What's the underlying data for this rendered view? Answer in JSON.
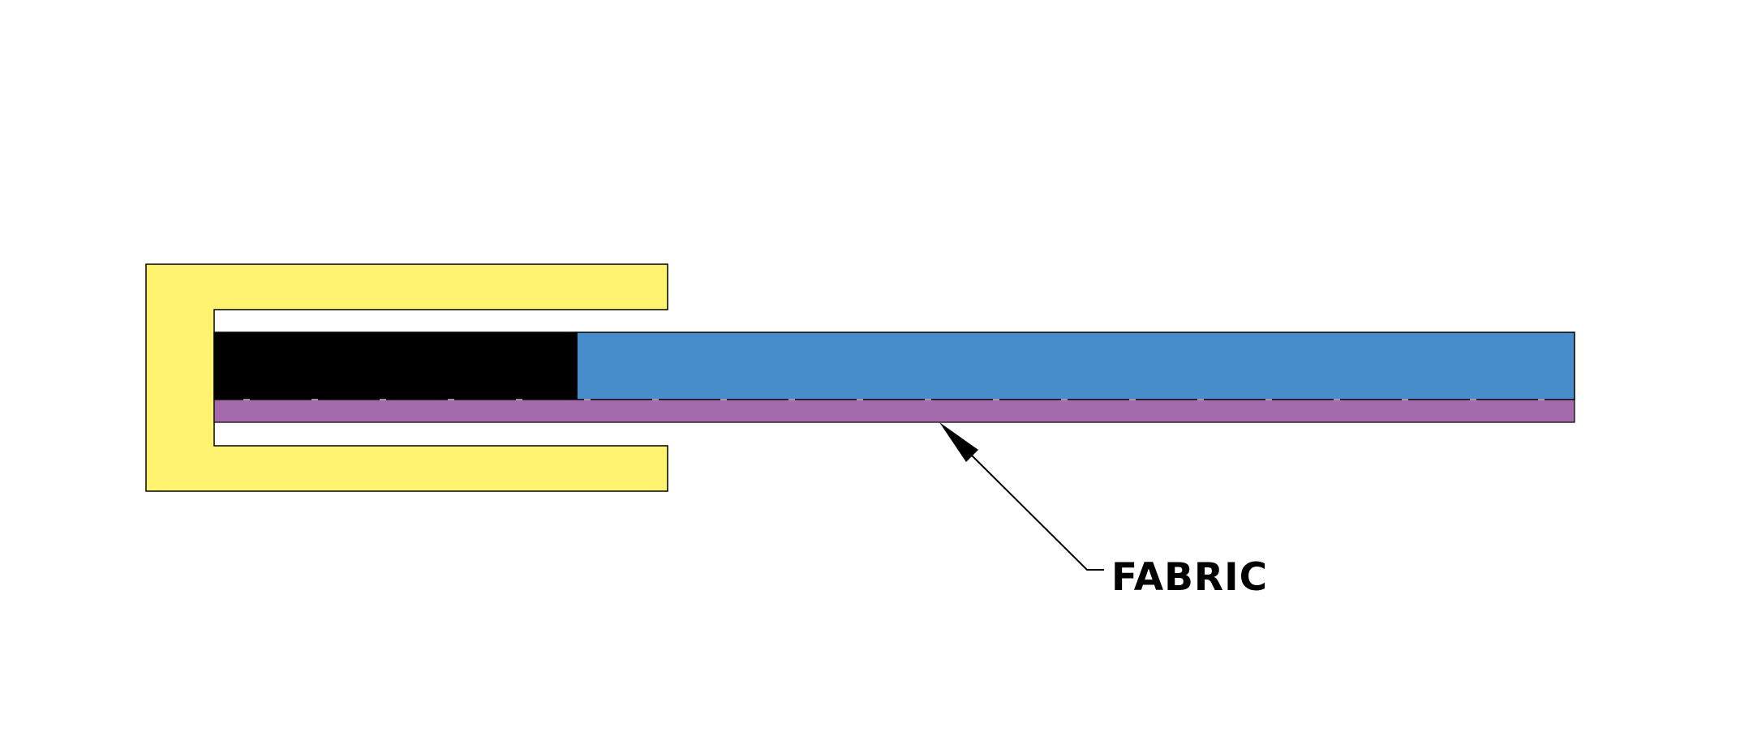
{
  "diagram": {
    "callout": {
      "label": "FABRIC"
    }
  },
  "colors": {
    "background": "#ffffff",
    "clamp_channel": "#fff36f",
    "black_insert": "#000000",
    "blue_panel": "#478ccb",
    "fabric_strip": "#a56aab",
    "outline": "#000000"
  }
}
